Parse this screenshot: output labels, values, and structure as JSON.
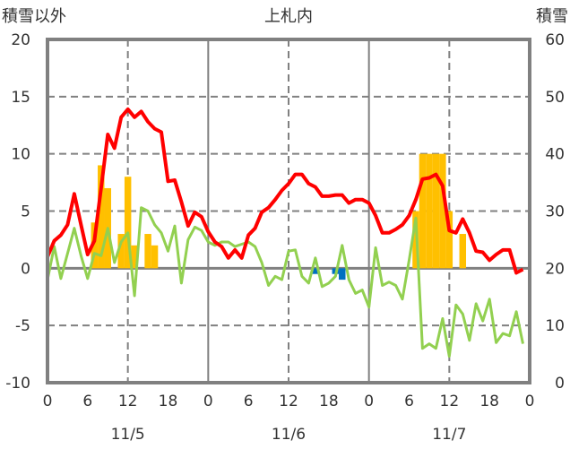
{
  "chart_data": {
    "type": "line",
    "title": "上札内",
    "ylabel_left": "積雪以外",
    "ylabel_right": "積雪",
    "ylim_left": [
      -10,
      20
    ],
    "ylim_right": [
      0,
      60
    ],
    "yticks_left": [
      "20",
      "15",
      "10",
      "5",
      "0",
      "-5",
      "-10"
    ],
    "yticks_right": [
      "60",
      "50",
      "40",
      "30",
      "20",
      "10",
      "0"
    ],
    "xlim_hours": [
      0,
      72
    ],
    "xtick_labels": [
      "0",
      "6",
      "12",
      "18",
      "0",
      "6",
      "12",
      "18",
      "0",
      "6",
      "12",
      "18",
      "0"
    ],
    "date_labels": [
      "11/5",
      "11/6",
      "11/7"
    ],
    "grid": true,
    "series": [
      {
        "name": "temperature",
        "color": "#ff0000",
        "axis": "left",
        "values": [
          1.0,
          2.4,
          2.9,
          3.8,
          6.5,
          3.8,
          1.2,
          2.4,
          7.0,
          11.7,
          10.5,
          13.2,
          13.9,
          13.2,
          13.7,
          12.8,
          12.2,
          11.9,
          7.6,
          7.7,
          5.8,
          3.7,
          4.9,
          4.5,
          3.2,
          2.3,
          1.9,
          0.9,
          1.6,
          0.9,
          2.9,
          3.5,
          4.9,
          5.3,
          6.0,
          6.8,
          7.4,
          8.2,
          8.2,
          7.4,
          7.1,
          6.3,
          6.3,
          6.4,
          6.4,
          5.7,
          6.0,
          6.0,
          5.7,
          4.6,
          3.1,
          3.1,
          3.4,
          3.8,
          4.6,
          6.0,
          7.8,
          7.9,
          8.2,
          7.2,
          3.3,
          3.1,
          4.3,
          3.1,
          1.5,
          1.4,
          0.7,
          1.2,
          1.6,
          1.6,
          -0.4,
          -0.1
        ]
      },
      {
        "name": "other",
        "color": "#92d050",
        "axis": "left",
        "values": [
          -1.0,
          1.9,
          -0.9,
          1.3,
          3.5,
          1.1,
          -0.9,
          1.3,
          1.1,
          3.5,
          0.5,
          2.3,
          3.1,
          -2.4,
          5.3,
          5.0,
          3.8,
          3.1,
          1.5,
          3.7,
          -1.3,
          2.5,
          3.6,
          3.3,
          2.3,
          2.0,
          2.3,
          2.3,
          1.9,
          2.1,
          2.3,
          1.9,
          0.5,
          -1.5,
          -0.7,
          -1.0,
          1.5,
          1.6,
          -0.7,
          -1.3,
          0.9,
          -1.6,
          -1.3,
          -0.7,
          2.0,
          -1.0,
          -2.2,
          -1.9,
          -3.4,
          1.8,
          -1.5,
          -1.2,
          -1.5,
          -2.7,
          0.7,
          4.4,
          -7.0,
          -6.6,
          -7.0,
          -4.4,
          -7.7,
          -3.2,
          -4.0,
          -6.3,
          -3.1,
          -4.6,
          -2.7,
          -6.5,
          -5.7,
          -5.9,
          -3.8,
          -6.6
        ]
      },
      {
        "name": "snow_depth",
        "color": "#7030a0",
        "axis": "right",
        "values": [
          0,
          0,
          0,
          0,
          0,
          0,
          0,
          0,
          0,
          0,
          0,
          0,
          0,
          0,
          0,
          0,
          0,
          0,
          0,
          0,
          0,
          0,
          0,
          0,
          0,
          0,
          0,
          0,
          0,
          0,
          0,
          0,
          0,
          0,
          0,
          0,
          0,
          0,
          0,
          0,
          0,
          0,
          0,
          0,
          0,
          0,
          0,
          0,
          0,
          0,
          0,
          0,
          0,
          0,
          0,
          0,
          0,
          0,
          0,
          0,
          0,
          0,
          0,
          0,
          0,
          0,
          0,
          0,
          0,
          0,
          0,
          0,
          0
        ]
      }
    ],
    "bars": [
      {
        "name": "positive",
        "color": "#ffc000",
        "axis": "left",
        "points": [
          [
            7,
            4
          ],
          [
            8,
            9
          ],
          [
            9,
            7
          ],
          [
            11,
            3
          ],
          [
            12,
            8
          ],
          [
            13,
            2
          ],
          [
            15,
            3
          ],
          [
            16,
            2
          ],
          [
            55,
            5
          ],
          [
            56,
            10
          ],
          [
            57,
            10
          ],
          [
            58,
            10
          ],
          [
            59,
            10
          ],
          [
            60,
            5
          ],
          [
            62,
            3
          ]
        ]
      },
      {
        "name": "negative",
        "color": "#0070c0",
        "axis": "left",
        "points": [
          [
            40,
            -0.5
          ],
          [
            43,
            -0.5
          ],
          [
            44,
            -1
          ]
        ]
      }
    ]
  }
}
